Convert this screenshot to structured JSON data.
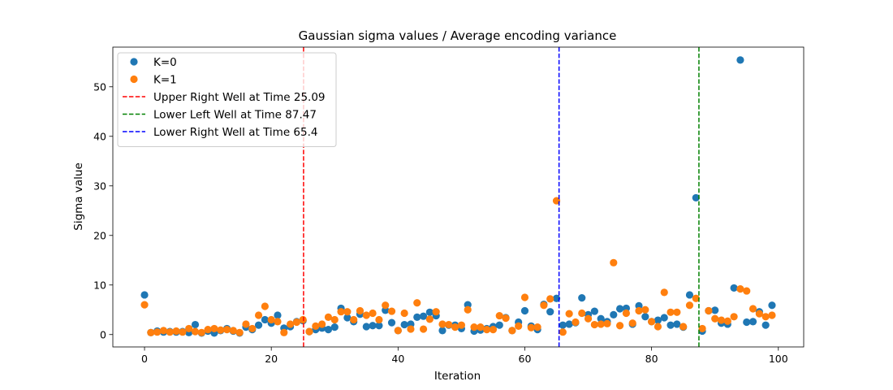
{
  "chart_data": {
    "type": "scatter",
    "title": "Gaussian sigma values / Average encoding variance",
    "xlabel": "Iteration",
    "ylabel": "Sigma value",
    "xlim": [
      -5,
      104
    ],
    "ylim": [
      -2.5,
      58
    ],
    "xticks": [
      0,
      20,
      40,
      60,
      80,
      100
    ],
    "yticks": [
      0,
      10,
      20,
      30,
      40,
      50
    ],
    "grid": false,
    "legend_position": "top-left",
    "series": [
      {
        "name": "K=0",
        "color": "#1f77b4",
        "x": [
          0,
          1,
          2,
          3,
          4,
          5,
          6,
          7,
          8,
          9,
          10,
          11,
          12,
          13,
          14,
          15,
          16,
          17,
          18,
          19,
          20,
          21,
          22,
          23,
          24,
          25,
          26,
          27,
          28,
          29,
          30,
          31,
          32,
          33,
          34,
          35,
          36,
          37,
          38,
          39,
          40,
          41,
          42,
          43,
          44,
          45,
          46,
          47,
          48,
          49,
          50,
          51,
          52,
          53,
          54,
          55,
          56,
          57,
          58,
          59,
          60,
          61,
          62,
          63,
          64,
          65,
          66,
          67,
          68,
          69,
          70,
          71,
          72,
          73,
          74,
          75,
          76,
          77,
          78,
          79,
          80,
          81,
          82,
          83,
          84,
          85,
          86,
          87,
          88,
          89,
          90,
          91,
          92,
          93,
          94,
          95,
          96,
          97,
          98,
          99
        ],
        "y": [
          8.0,
          0.4,
          0.7,
          0.5,
          0.6,
          0.5,
          0.6,
          0.4,
          2.0,
          0.3,
          0.7,
          0.3,
          0.8,
          1.2,
          0.7,
          0.3,
          1.5,
          1.0,
          1.9,
          3.0,
          2.3,
          3.9,
          1.3,
          1.6,
          2.6,
          2.8,
          0.6,
          1.0,
          1.3,
          1.0,
          1.5,
          5.3,
          3.4,
          2.6,
          4.1,
          1.6,
          1.8,
          1.8,
          4.9,
          2.4,
          0.8,
          2.0,
          2.1,
          3.5,
          3.7,
          4.5,
          3.8,
          0.8,
          1.9,
          1.9,
          1.2,
          6.0,
          0.7,
          0.9,
          1.2,
          1.6,
          1.9,
          3.4,
          0.8,
          2.5,
          4.8,
          1.7,
          1.0,
          6.1,
          4.6,
          7.3,
          1.9,
          2.1,
          2.4,
          7.4,
          4.0,
          4.7,
          3.2,
          2.6,
          4.0,
          5.2,
          5.3,
          2.1,
          5.8,
          3.6,
          2.6,
          2.9,
          3.4,
          1.9,
          2.1,
          1.5,
          8.0,
          27.6,
          0.7,
          4.8,
          4.9,
          2.3,
          2.1,
          9.4,
          55.4,
          2.5,
          2.6,
          4.6,
          1.9,
          5.9
        ]
      },
      {
        "name": "K=1",
        "color": "#ff7f0e",
        "x": [
          0,
          1,
          2,
          3,
          4,
          5,
          6,
          7,
          8,
          9,
          10,
          11,
          12,
          13,
          14,
          15,
          16,
          17,
          18,
          19,
          20,
          21,
          22,
          23,
          24,
          25,
          26,
          27,
          28,
          29,
          30,
          31,
          32,
          33,
          34,
          35,
          36,
          37,
          38,
          39,
          40,
          41,
          42,
          43,
          44,
          45,
          46,
          47,
          48,
          49,
          50,
          51,
          52,
          53,
          54,
          55,
          56,
          57,
          58,
          59,
          60,
          61,
          62,
          63,
          64,
          65,
          66,
          67,
          68,
          69,
          70,
          71,
          72,
          73,
          74,
          75,
          76,
          77,
          78,
          79,
          80,
          81,
          82,
          83,
          84,
          85,
          86,
          87,
          88,
          89,
          90,
          91,
          92,
          93,
          94,
          95,
          96,
          97,
          98,
          99
        ],
        "y": [
          6.0,
          0.4,
          0.5,
          0.8,
          0.5,
          0.7,
          0.5,
          1.2,
          0.6,
          0.4,
          1.0,
          1.2,
          0.9,
          1.0,
          0.8,
          0.4,
          2.1,
          1.2,
          3.9,
          5.7,
          3.0,
          2.6,
          0.4,
          2.1,
          2.5,
          3.0,
          0.6,
          1.7,
          2.1,
          3.5,
          3.0,
          4.6,
          4.6,
          3.0,
          4.8,
          3.9,
          4.3,
          3.0,
          5.9,
          4.7,
          0.8,
          4.3,
          1.1,
          6.4,
          1.1,
          3.1,
          4.6,
          2.1,
          2.0,
          1.5,
          1.9,
          5.0,
          1.5,
          1.5,
          1.0,
          1.0,
          3.8,
          3.3,
          0.8,
          1.7,
          7.5,
          1.4,
          1.5,
          5.9,
          7.2,
          27.0,
          0.5,
          4.2,
          2.5,
          4.3,
          3.2,
          2.0,
          2.1,
          2.2,
          14.5,
          1.8,
          4.3,
          2.3,
          4.8,
          5.0,
          2.6,
          1.6,
          8.5,
          4.5,
          4.5,
          1.6,
          5.9,
          7.3,
          1.2,
          4.8,
          3.2,
          2.9,
          2.7,
          3.6,
          9.2,
          8.8,
          5.2,
          4.2,
          3.6,
          3.9
        ]
      }
    ],
    "vlines": [
      {
        "name": "Upper Right Well at Time 25.09",
        "x": 25.09,
        "color": "#ff0000",
        "style": "dashed"
      },
      {
        "name": "Lower Left Well at Time 87.47",
        "x": 87.47,
        "color": "#008000",
        "style": "dashed"
      },
      {
        "name": "Lower Right Well at Time 65.4",
        "x": 65.4,
        "color": "#0000ff",
        "style": "dashed"
      }
    ],
    "legend_order": [
      "K=0",
      "K=1",
      "Upper Right Well at Time 25.09",
      "Lower Left Well at Time 87.47",
      "Lower Right Well at Time 65.4"
    ]
  }
}
